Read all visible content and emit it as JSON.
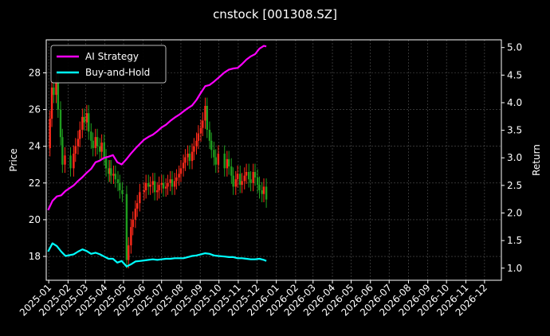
{
  "chart_data": {
    "type": "line",
    "title": "cnstock [001308.SZ]",
    "xlabel": "",
    "ylabel": "Price",
    "y2label": "Return",
    "x_ticks": [
      "2025-01",
      "2025-02",
      "2025-03",
      "2025-04",
      "2025-05",
      "2025-06",
      "2025-07",
      "2025-08",
      "2025-09",
      "2025-10",
      "2025-11",
      "2025-12",
      "2026-01",
      "2026-02",
      "2026-03",
      "2026-04",
      "2026-05",
      "2026-06",
      "2026-07",
      "2026-08",
      "2026-09",
      "2026-10",
      "2026-11",
      "2026-12"
    ],
    "ylim": [
      16.7,
      29.8
    ],
    "y_ticks": [
      18,
      20,
      22,
      24,
      26,
      28
    ],
    "y2lim": [
      0.78,
      5.14
    ],
    "y2_ticks": [
      "1.0",
      "1.5",
      "2.0",
      "2.5",
      "3.0",
      "3.5",
      "4.0",
      "4.5",
      "5.0"
    ],
    "xlim": [
      "2024-12-28",
      "2026-12-28"
    ],
    "grid": true,
    "legend_position": "upper-left",
    "colors": {
      "background": "#000000",
      "ai_strategy": "#ff00ff",
      "buy_and_hold": "#00ffff",
      "candle_up": "#ff2a1a",
      "candle_down": "#1f9e1f",
      "grid": "#555555"
    },
    "candles_close": {
      "dates": [
        "2024-12-31",
        "2025-01-03",
        "2025-01-06",
        "2025-01-09",
        "2025-01-13",
        "2025-01-16",
        "2025-01-20",
        "2025-01-23",
        "2025-01-27",
        "2025-02-05",
        "2025-02-10",
        "2025-02-13",
        "2025-02-17",
        "2025-02-20",
        "2025-02-24",
        "2025-02-27",
        "2025-03-03",
        "2025-03-06",
        "2025-03-10",
        "2025-03-13",
        "2025-03-17",
        "2025-03-20",
        "2025-03-24",
        "2025-03-27",
        "2025-03-31",
        "2025-04-03",
        "2025-04-07",
        "2025-04-09",
        "2025-04-11",
        "2025-04-15",
        "2025-04-18",
        "2025-04-22",
        "2025-04-25",
        "2025-04-29",
        "2025-05-06",
        "2025-05-09",
        "2025-05-13",
        "2025-05-16",
        "2025-05-20",
        "2025-05-23",
        "2025-05-27",
        "2025-06-03",
        "2025-06-06",
        "2025-06-10",
        "2025-06-13",
        "2025-06-17",
        "2025-06-20",
        "2025-06-24",
        "2025-06-27",
        "2025-07-01",
        "2025-07-04",
        "2025-07-08",
        "2025-07-11",
        "2025-07-15",
        "2025-07-18",
        "2025-07-22",
        "2025-07-25",
        "2025-07-29",
        "2025-08-01",
        "2025-08-05",
        "2025-08-08",
        "2025-08-12",
        "2025-08-15",
        "2025-08-19",
        "2025-08-22",
        "2025-08-26",
        "2025-08-29",
        "2025-09-02",
        "2025-09-05",
        "2025-09-09",
        "2025-09-12",
        "2025-09-16",
        "2025-09-19",
        "2025-09-23",
        "2025-09-26",
        "2025-09-30",
        "2025-10-10",
        "2025-10-14",
        "2025-10-17",
        "2025-10-21",
        "2025-10-24",
        "2025-10-28",
        "2025-10-31",
        "2025-11-04",
        "2025-11-07",
        "2025-11-11",
        "2025-11-14",
        "2025-11-18",
        "2025-11-21",
        "2025-11-25",
        "2025-11-28",
        "2025-12-02",
        "2025-12-05",
        "2025-12-09",
        "2025-12-12",
        "2025-12-16"
      ],
      "values": [
        23.9,
        25.5,
        27.2,
        26.8,
        27.6,
        26.0,
        24.5,
        23.0,
        23.5,
        22.8,
        23.6,
        24.0,
        24.4,
        24.9,
        25.6,
        25.3,
        25.8,
        24.8,
        24.3,
        23.9,
        24.5,
        24.0,
        23.7,
        24.2,
        23.4,
        22.8,
        22.5,
        22.8,
        22.4,
        22.5,
        22.2,
        22.0,
        21.6,
        21.4,
        17.8,
        18.6,
        19.6,
        20.0,
        20.6,
        20.9,
        21.5,
        21.6,
        22.0,
        21.8,
        21.9,
        22.1,
        21.5,
        21.6,
        21.9,
        22.0,
        21.7,
        21.8,
        22.0,
        22.2,
        21.8,
        22.1,
        22.3,
        22.5,
        22.8,
        23.1,
        23.4,
        23.6,
        23.2,
        23.7,
        24.0,
        24.3,
        24.7,
        25.0,
        25.4,
        26.2,
        24.9,
        24.3,
        23.8,
        23.4,
        23.0,
        23.6,
        22.8,
        23.3,
        22.9,
        22.4,
        21.8,
        22.2,
        22.5,
        21.9,
        22.1,
        22.4,
        22.6,
        22.2,
        22.0,
        22.6,
        22.3,
        21.9,
        21.6,
        21.4,
        21.8,
        21.1
      ]
    },
    "series": [
      {
        "name": "AI Strategy",
        "dates": [
          "2024-12-31",
          "2025-01-07",
          "2025-01-14",
          "2025-01-21",
          "2025-01-28",
          "2025-02-10",
          "2025-02-17",
          "2025-02-24",
          "2025-03-03",
          "2025-03-10",
          "2025-03-17",
          "2025-03-24",
          "2025-03-31",
          "2025-04-07",
          "2025-04-14",
          "2025-04-21",
          "2025-04-28",
          "2025-05-06",
          "2025-05-13",
          "2025-05-20",
          "2025-05-27",
          "2025-06-03",
          "2025-06-10",
          "2025-06-17",
          "2025-06-24",
          "2025-07-01",
          "2025-07-08",
          "2025-07-15",
          "2025-07-22",
          "2025-07-29",
          "2025-08-05",
          "2025-08-12",
          "2025-08-19",
          "2025-08-26",
          "2025-09-02",
          "2025-09-09",
          "2025-09-16",
          "2025-09-23",
          "2025-09-30",
          "2025-10-10",
          "2025-10-17",
          "2025-10-24",
          "2025-10-31",
          "2025-11-07",
          "2025-11-14",
          "2025-11-21",
          "2025-11-28",
          "2025-12-05",
          "2025-12-12",
          "2025-12-16"
        ],
        "values": [
          2.05,
          2.22,
          2.3,
          2.32,
          2.4,
          2.5,
          2.58,
          2.65,
          2.73,
          2.8,
          2.92,
          2.95,
          3.0,
          3.02,
          3.05,
          2.92,
          2.88,
          2.98,
          3.08,
          3.17,
          3.25,
          3.33,
          3.38,
          3.42,
          3.48,
          3.55,
          3.6,
          3.67,
          3.73,
          3.78,
          3.84,
          3.9,
          3.95,
          4.05,
          4.18,
          4.3,
          4.32,
          4.38,
          4.45,
          4.55,
          4.6,
          4.62,
          4.63,
          4.7,
          4.78,
          4.84,
          4.88,
          4.98,
          5.03,
          5.02
        ]
      },
      {
        "name": "Buy-and-Hold",
        "dates": [
          "2024-12-31",
          "2025-01-07",
          "2025-01-14",
          "2025-01-21",
          "2025-01-28",
          "2025-02-10",
          "2025-02-17",
          "2025-02-24",
          "2025-03-03",
          "2025-03-10",
          "2025-03-17",
          "2025-03-24",
          "2025-03-31",
          "2025-04-07",
          "2025-04-14",
          "2025-04-21",
          "2025-04-28",
          "2025-05-06",
          "2025-05-13",
          "2025-05-20",
          "2025-05-27",
          "2025-06-03",
          "2025-06-10",
          "2025-06-17",
          "2025-06-24",
          "2025-07-01",
          "2025-07-08",
          "2025-07-15",
          "2025-07-22",
          "2025-07-29",
          "2025-08-05",
          "2025-08-12",
          "2025-08-19",
          "2025-08-26",
          "2025-09-02",
          "2025-09-09",
          "2025-09-16",
          "2025-09-23",
          "2025-09-30",
          "2025-10-10",
          "2025-10-17",
          "2025-10-24",
          "2025-10-31",
          "2025-11-07",
          "2025-11-14",
          "2025-11-21",
          "2025-11-28",
          "2025-12-05",
          "2025-12-12",
          "2025-12-16"
        ],
        "values": [
          1.3,
          1.45,
          1.4,
          1.3,
          1.22,
          1.25,
          1.3,
          1.34,
          1.31,
          1.26,
          1.28,
          1.25,
          1.21,
          1.17,
          1.17,
          1.1,
          1.13,
          1.03,
          1.07,
          1.12,
          1.13,
          1.14,
          1.15,
          1.16,
          1.15,
          1.16,
          1.17,
          1.17,
          1.18,
          1.18,
          1.18,
          1.2,
          1.22,
          1.23,
          1.25,
          1.27,
          1.26,
          1.23,
          1.22,
          1.21,
          1.2,
          1.2,
          1.18,
          1.18,
          1.17,
          1.16,
          1.16,
          1.17,
          1.15,
          1.13
        ]
      }
    ]
  }
}
